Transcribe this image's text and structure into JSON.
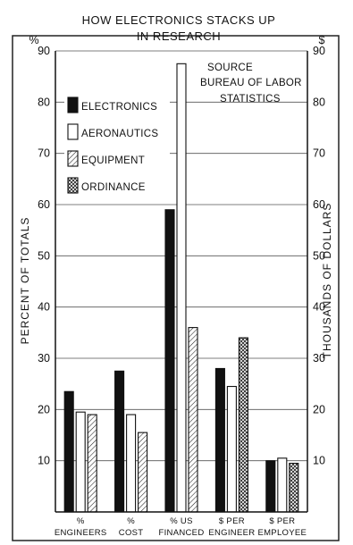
{
  "chart_data": {
    "type": "bar",
    "title_lines": [
      "HOW ELECTRONICS STACKS UP",
      "IN RESEARCH"
    ],
    "left_unit": "%",
    "right_unit": "$",
    "ylabel_left": "PERCENT OF TOTALS",
    "ylabel_right": "THOUSANDS OF DOLLARS",
    "ylim": [
      0,
      90
    ],
    "yticks": [
      10,
      20,
      30,
      40,
      50,
      60,
      70,
      80,
      90
    ],
    "source_lines": [
      "SOURCE",
      "BUREAU OF LABOR",
      "STATISTICS"
    ],
    "categories": [
      [
        "%",
        "ENGINEERS"
      ],
      [
        "%",
        "COST"
      ],
      [
        "% US",
        "FINANCED"
      ],
      [
        "$ PER",
        "ENGINEER"
      ],
      [
        "$ PER",
        "EMPLOYEE"
      ]
    ],
    "series": [
      {
        "name": "ELECTRONICS",
        "style": "solid",
        "values": [
          23.5,
          27.5,
          59,
          28,
          10
        ]
      },
      {
        "name": "AERONAUTICS",
        "style": "open",
        "values": [
          19.5,
          19,
          87.5,
          24.5,
          10.5
        ]
      },
      {
        "name": "EQUIPMENT",
        "style": "hatch",
        "values": [
          19,
          15.5,
          36,
          null,
          null
        ]
      },
      {
        "name": "ORDINANCE",
        "style": "crosshatch",
        "values": [
          null,
          null,
          null,
          34,
          9.5
        ]
      }
    ],
    "grid": true,
    "legend_position": "top-left"
  }
}
